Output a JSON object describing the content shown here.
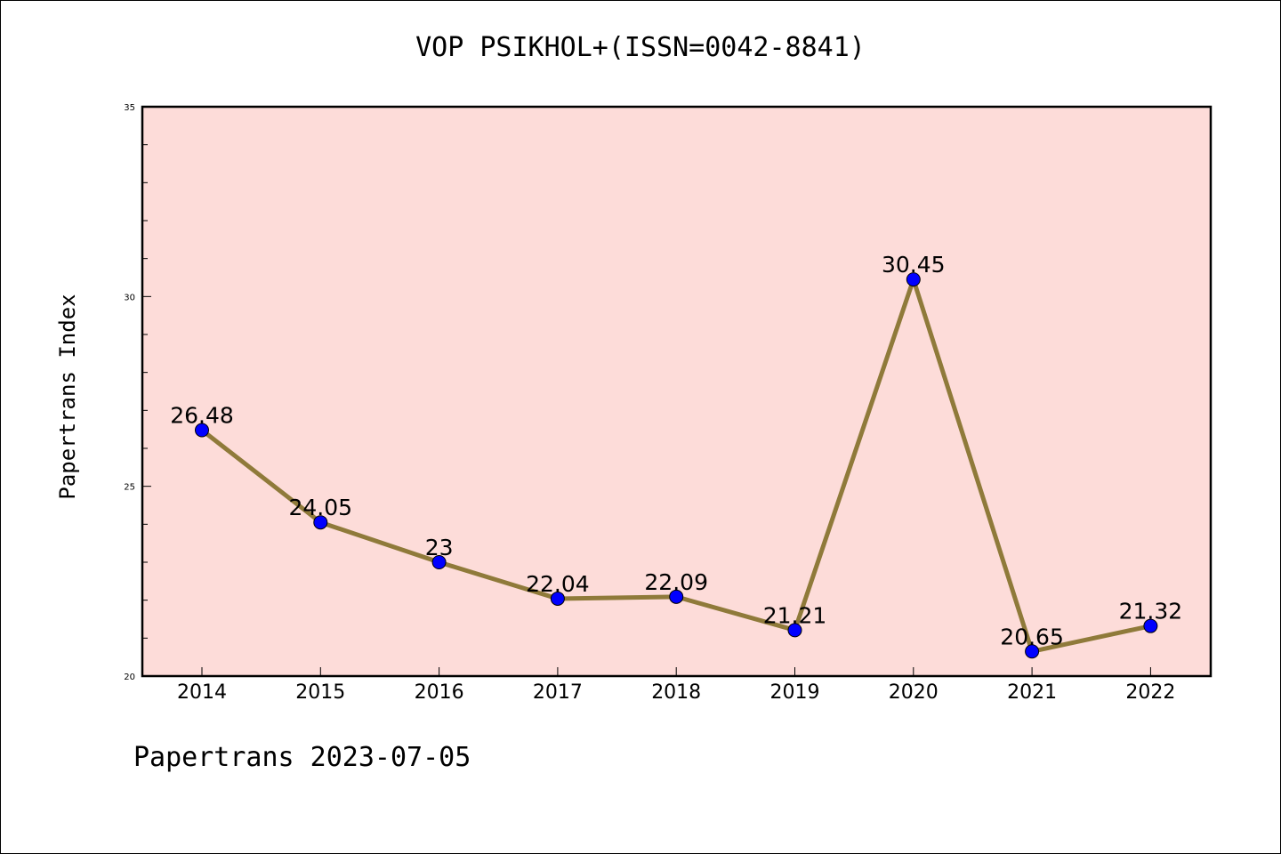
{
  "chart_data": {
    "type": "line",
    "title": "VOP PSIKHOL+(ISSN=0042-8841)",
    "xlabel": "",
    "ylabel": "Papertrans Index",
    "categories": [
      "2014",
      "2015",
      "2016",
      "2017",
      "2018",
      "2019",
      "2020",
      "2021",
      "2022"
    ],
    "values": [
      26.48,
      24.05,
      23,
      22.04,
      22.09,
      21.21,
      30.45,
      20.65,
      21.32
    ],
    "data_labels": [
      "26.48",
      "24.05",
      "23",
      "22.04",
      "22.09",
      "21.21",
      "30.45",
      "20.65",
      "21.32"
    ],
    "ylim": [
      20,
      35
    ],
    "y_ticks": [
      20,
      25,
      30,
      35
    ],
    "y_tick_labels": [
      "20",
      "25",
      "30",
      "35"
    ],
    "grid": false,
    "legend": "none",
    "colors": {
      "plot_background": "#fddcd9",
      "line": "#8f7a3a",
      "marker": "#0000ff"
    }
  },
  "footer": {
    "text": "Papertrans 2023-07-05"
  }
}
